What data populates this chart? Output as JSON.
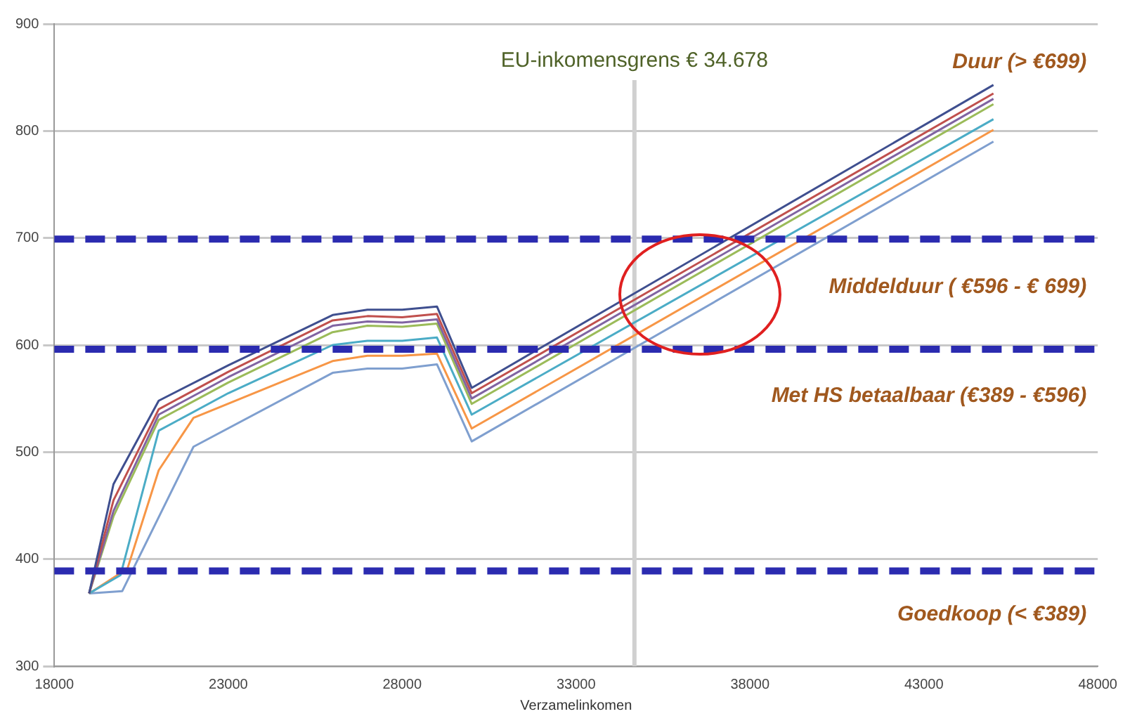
{
  "chart_data": {
    "type": "line",
    "xlabel": "Verzamelinkomen",
    "xlim": [
      18000,
      48000
    ],
    "xticks": [
      18000,
      23000,
      28000,
      33000,
      38000,
      43000,
      48000
    ],
    "ylim": [
      300,
      900
    ],
    "yticks": [
      300,
      400,
      500,
      600,
      700,
      800,
      900
    ],
    "grid": "y",
    "legend": false,
    "marker": "none",
    "series": [
      {
        "color": "#3f4f8f",
        "x": [
          19000,
          19700,
          21000,
          23000,
          26000,
          27000,
          28000,
          29000,
          30000,
          45000
        ],
        "values": [
          368,
          470,
          548,
          581,
          628,
          633,
          633,
          636,
          560,
          843
        ]
      },
      {
        "color": "#c0504d",
        "x": [
          19000,
          19700,
          21000,
          23000,
          26000,
          27000,
          28000,
          29000,
          30000,
          45000
        ],
        "values": [
          368,
          455,
          540,
          575,
          623,
          627,
          626,
          629,
          555,
          835
        ]
      },
      {
        "color": "#8064a2",
        "x": [
          19000,
          19700,
          21000,
          23000,
          26000,
          27000,
          28000,
          29000,
          30000,
          45000
        ],
        "values": [
          368,
          445,
          535,
          570,
          618,
          622,
          621,
          624,
          550,
          830
        ]
      },
      {
        "color": "#9bbb59",
        "x": [
          19000,
          19700,
          21000,
          23000,
          26000,
          27000,
          28000,
          29000,
          30000,
          45000
        ],
        "values": [
          368,
          440,
          530,
          565,
          612,
          618,
          617,
          620,
          545,
          825
        ]
      },
      {
        "color": "#4bacc6",
        "x": [
          19000,
          19900,
          21000,
          23000,
          26000,
          27000,
          28000,
          29000,
          30000,
          45000
        ],
        "values": [
          368,
          385,
          520,
          555,
          600,
          604,
          604,
          607,
          535,
          811
        ]
      },
      {
        "color": "#f79646",
        "x": [
          19000,
          20100,
          21000,
          22000,
          26000,
          27000,
          28000,
          29000,
          30000,
          45000
        ],
        "values": [
          368,
          391,
          483,
          532,
          585,
          590,
          590,
          592,
          522,
          801
        ]
      },
      {
        "color": "#7f9fcf",
        "x": [
          19000,
          19950,
          22000,
          26000,
          27000,
          28000,
          29000,
          30000,
          45000
        ],
        "values": [
          368,
          370,
          505,
          574,
          578,
          578,
          582,
          510,
          790
        ]
      }
    ],
    "ref_lines": [
      {
        "axis": "y",
        "value": 699,
        "color": "#2b2bb0",
        "line_style": "dashed"
      },
      {
        "axis": "y",
        "value": 596,
        "color": "#2b2bb0",
        "line_style": "dashed"
      },
      {
        "axis": "y",
        "value": 389,
        "color": "#2b2bb0",
        "line_style": "dashed"
      },
      {
        "axis": "x",
        "value": 34678,
        "label": "EU-inkomensgrens € 34.678",
        "color": "#d0d0d0",
        "line_style": "solid"
      }
    ],
    "annotations": [
      "Duur (> €699)",
      "Middelduur ( €596 - € 699)",
      "Met HS betaalbaar (€389 - €596)",
      "Goedkoop (< €389)"
    ]
  }
}
